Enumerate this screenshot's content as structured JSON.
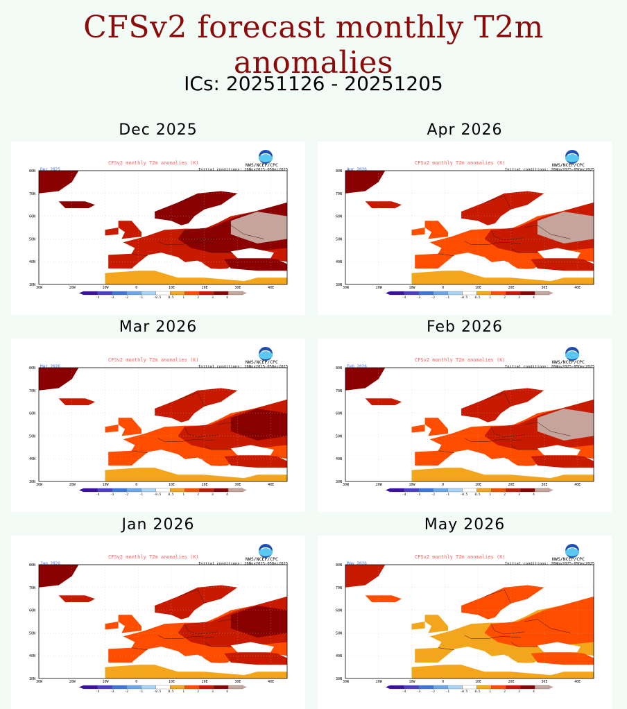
{
  "title": "CFSv2 forecast monthly T2m anomalies",
  "subtitle": "ICs: 20251126 - 20251205",
  "chart_data": {
    "type": "map-panels",
    "variable": "T2m anomaly",
    "units": "K",
    "map_title": "CFSv2 monthly T2m anomalies (K)",
    "credit": "NWS/NCEP/CPC",
    "initial_conditions": "Initial conditions: 26Nov2025-05Dec2025",
    "lat_labels": [
      "80N",
      "70N",
      "60N",
      "50N",
      "40N",
      "30N"
    ],
    "lon_labels": [
      "30W",
      "20W",
      "10W",
      "0",
      "10E",
      "20E",
      "30E",
      "40E"
    ],
    "colorbar_labels": [
      "-4",
      "-3",
      "-2",
      "-1",
      "-0.5",
      "0.5",
      "1",
      "2",
      "3",
      "4"
    ],
    "colorbar_colors": [
      "#3b0ea8",
      "#4a3fd0",
      "#3a78e0",
      "#6aa8ee",
      "#a8d4f7",
      "#ffffff",
      "#f3a61b",
      "#ff4d00",
      "#c81a00",
      "#8b0000",
      "#c4a49b"
    ],
    "panels": [
      {
        "label": "Dec  2025",
        "month_tag": "Dec 2025",
        "level": 3,
        "hot": 1
      },
      {
        "label": "Mar  2026",
        "month_tag": "Mar 2026",
        "level": 2,
        "hot": 0
      },
      {
        "label": "Jan  2026",
        "month_tag": "Jan 2026",
        "level": 2,
        "hot": 0
      },
      {
        "label": "Apr  2026",
        "month_tag": "Apr 2026",
        "level": 2,
        "hot": 1
      },
      {
        "label": "Feb  2026",
        "month_tag": "Feb 2026",
        "level": 2,
        "hot": 1
      },
      {
        "label": "May  2026",
        "month_tag": "May 2026",
        "level": 1,
        "hot": 0
      }
    ]
  }
}
